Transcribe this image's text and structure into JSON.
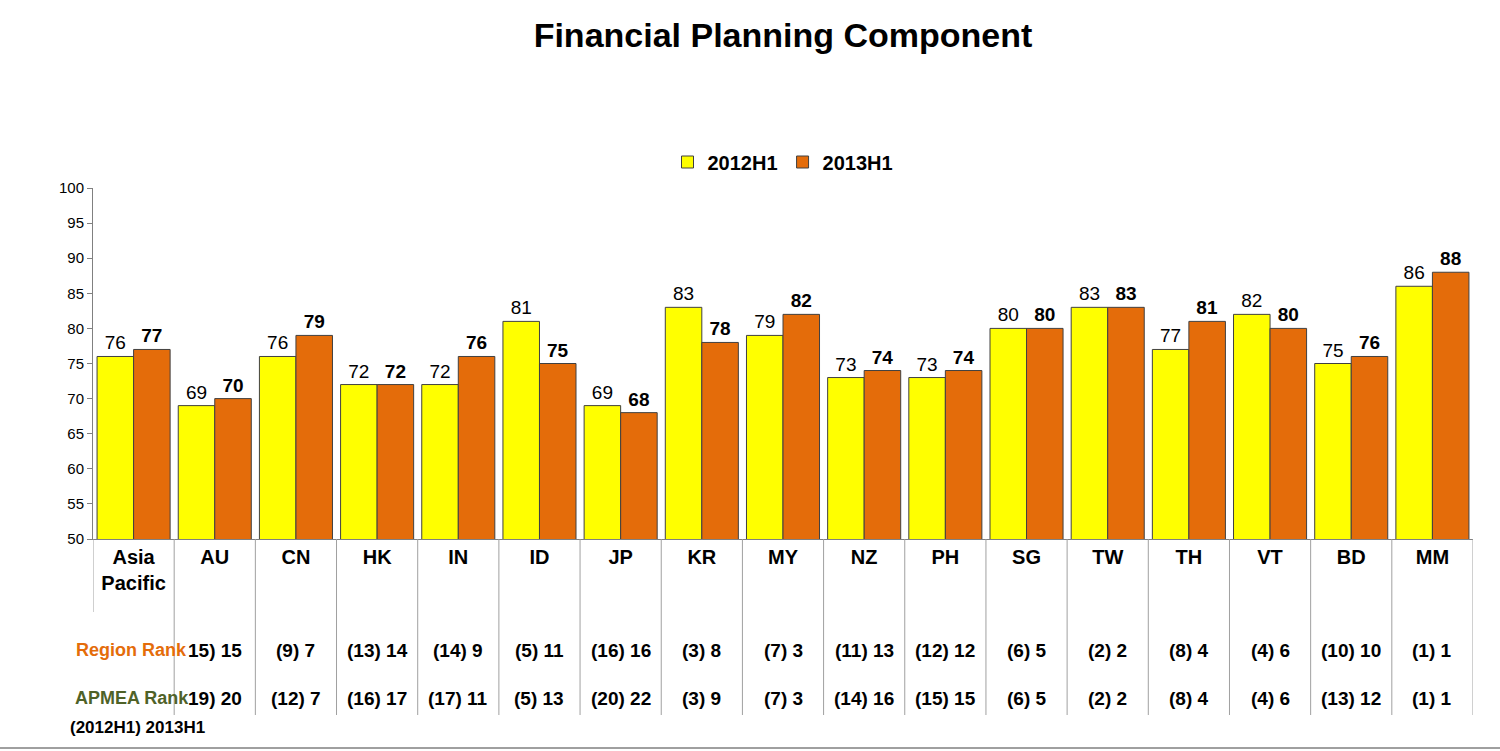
{
  "chart_data": {
    "type": "bar",
    "title": "Financial Planning Component",
    "subtitle": "Asia Pacific",
    "categories": [
      "Asia Pacific",
      "AU",
      "CN",
      "HK",
      "IN",
      "ID",
      "JP",
      "KR",
      "MY",
      "NZ",
      "PH",
      "SG",
      "TW",
      "TH",
      "VT",
      "BD",
      "MM"
    ],
    "series": [
      {
        "name": "2012H1",
        "color": "#ffff00",
        "values": [
          76,
          69,
          76,
          72,
          72,
          81,
          69,
          83,
          79,
          73,
          73,
          80,
          83,
          77,
          82,
          75,
          86
        ]
      },
      {
        "name": "2013H1",
        "color": "#e46c0a",
        "values": [
          77,
          70,
          79,
          72,
          76,
          75,
          68,
          78,
          82,
          74,
          74,
          80,
          83,
          81,
          80,
          76,
          88
        ]
      }
    ],
    "ylim": [
      50,
      100
    ],
    "yticks": [
      50,
      55,
      60,
      65,
      70,
      75,
      80,
      85,
      90,
      95,
      100
    ],
    "grid": false,
    "legend": "top",
    "data_labels": true,
    "rank_rows": [
      {
        "label": "Region Rank",
        "color": "#e46c0a",
        "values": [
          null,
          "15) 15",
          "(9) 7",
          "(13) 14",
          "(14) 9",
          "(5) 11",
          "(16) 16",
          "(3) 8",
          "(7) 3",
          "(11) 13",
          "(12) 12",
          "(6) 5",
          "(2) 2",
          "(8) 4",
          "(4) 6",
          "(10) 10",
          "(1) 1"
        ]
      },
      {
        "label": "APMEA Rank",
        "color": "#4f6228",
        "values": [
          null,
          "19) 20",
          "(12) 7",
          "(16) 17",
          "(17) 11",
          "(5) 13",
          "(20) 22",
          "(3) 9",
          "(7) 3",
          "(14) 16",
          "(15) 15",
          "(6) 5",
          "(2) 2",
          "(8) 4",
          "(4) 6",
          "(13) 12",
          "(1) 1"
        ]
      }
    ],
    "rank_note": "(2012H1) 2013H1"
  }
}
